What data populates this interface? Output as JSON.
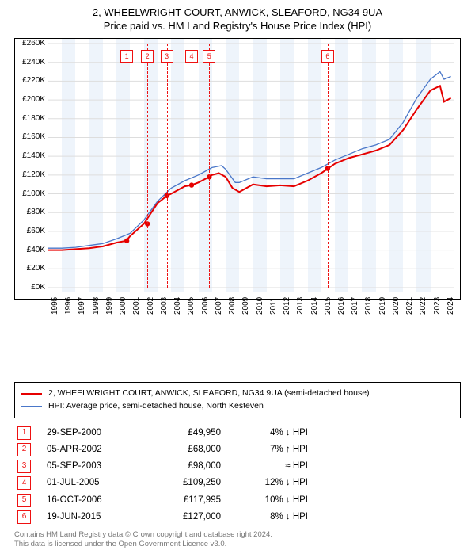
{
  "title_line1": "2, WHEELWRIGHT COURT, ANWICK, SLEAFORD, NG34 9UA",
  "title_line2": "Price paid vs. HM Land Registry's House Price Index (HPI)",
  "chart": {
    "type": "line",
    "background_color": "#ffffff",
    "grid_color": "#dddddd",
    "line_colors": {
      "price_paid": "#e60000",
      "hpi": "#4a77c9"
    },
    "line_widths": {
      "price_paid": 2,
      "hpi": 1.3
    },
    "x_min": 1995,
    "x_max": 2024.7,
    "y_min": 0,
    "y_max": 260000,
    "y_tick_step": 20000,
    "y_tick_prefix": "£",
    "y_tick_suffix": "K",
    "x_ticks": [
      1995,
      1996,
      1997,
      1998,
      1999,
      2000,
      2001,
      2002,
      2003,
      2004,
      2005,
      2006,
      2007,
      2008,
      2009,
      2010,
      2011,
      2012,
      2013,
      2014,
      2015,
      2016,
      2017,
      2018,
      2019,
      2020,
      2021,
      2022,
      2023,
      2024
    ],
    "alt_band_color": "#eef4fb",
    "series": {
      "price_paid": [
        [
          1995,
          40000
        ],
        [
          1996,
          40000
        ],
        [
          1997,
          41000
        ],
        [
          1998,
          42000
        ],
        [
          1999,
          44000
        ],
        [
          2000,
          48000
        ],
        [
          2000.7,
          49950
        ],
        [
          2001,
          55000
        ],
        [
          2002,
          68000
        ],
        [
          2003,
          90000
        ],
        [
          2003.7,
          98000
        ],
        [
          2004,
          100000
        ],
        [
          2005,
          108000
        ],
        [
          2005.5,
          109250
        ],
        [
          2006,
          112000
        ],
        [
          2006.8,
          117995
        ],
        [
          2007,
          120000
        ],
        [
          2007.5,
          122000
        ],
        [
          2008,
          118000
        ],
        [
          2008.5,
          106000
        ],
        [
          2009,
          102000
        ],
        [
          2010,
          110000
        ],
        [
          2011,
          108000
        ],
        [
          2012,
          109000
        ],
        [
          2013,
          108000
        ],
        [
          2014,
          114000
        ],
        [
          2015,
          122000
        ],
        [
          2015.5,
          127000
        ],
        [
          2016,
          132000
        ],
        [
          2017,
          138000
        ],
        [
          2018,
          142000
        ],
        [
          2019,
          146000
        ],
        [
          2020,
          152000
        ],
        [
          2021,
          168000
        ],
        [
          2022,
          190000
        ],
        [
          2023,
          210000
        ],
        [
          2023.7,
          215000
        ],
        [
          2024,
          198000
        ],
        [
          2024.5,
          202000
        ]
      ],
      "hpi": [
        [
          1995,
          42000
        ],
        [
          1996,
          42000
        ],
        [
          1997,
          43000
        ],
        [
          1998,
          45000
        ],
        [
          1999,
          47000
        ],
        [
          2000,
          52000
        ],
        [
          2001,
          58000
        ],
        [
          2002,
          72000
        ],
        [
          2003,
          92000
        ],
        [
          2004,
          106000
        ],
        [
          2005,
          114000
        ],
        [
          2006,
          120000
        ],
        [
          2007,
          128000
        ],
        [
          2007.7,
          130000
        ],
        [
          2008,
          126000
        ],
        [
          2008.7,
          112000
        ],
        [
          2009,
          112000
        ],
        [
          2010,
          118000
        ],
        [
          2011,
          116000
        ],
        [
          2012,
          116000
        ],
        [
          2013,
          116000
        ],
        [
          2014,
          122000
        ],
        [
          2015,
          128000
        ],
        [
          2016,
          136000
        ],
        [
          2017,
          142000
        ],
        [
          2018,
          148000
        ],
        [
          2019,
          152000
        ],
        [
          2020,
          158000
        ],
        [
          2021,
          176000
        ],
        [
          2022,
          202000
        ],
        [
          2023,
          222000
        ],
        [
          2023.7,
          230000
        ],
        [
          2024,
          222000
        ],
        [
          2024.5,
          225000
        ]
      ]
    },
    "sale_markers": [
      {
        "n": "1",
        "x": 2000.75,
        "y": 49950
      },
      {
        "n": "2",
        "x": 2002.26,
        "y": 68000
      },
      {
        "n": "3",
        "x": 2003.68,
        "y": 98000
      },
      {
        "n": "4",
        "x": 2005.5,
        "y": 109250
      },
      {
        "n": "5",
        "x": 2006.79,
        "y": 117995
      },
      {
        "n": "6",
        "x": 2015.47,
        "y": 127000
      }
    ],
    "sale_dot_color": "#e60000"
  },
  "legend": {
    "items": [
      {
        "color": "#e60000",
        "label": "2, WHEELWRIGHT COURT, ANWICK, SLEAFORD, NG34 9UA (semi-detached house)"
      },
      {
        "color": "#4a77c9",
        "label": "HPI: Average price, semi-detached house, North Kesteven"
      }
    ]
  },
  "sales": [
    {
      "n": "1",
      "date": "29-SEP-2000",
      "price": "£49,950",
      "delta": "4% ↓ HPI"
    },
    {
      "n": "2",
      "date": "05-APR-2002",
      "price": "£68,000",
      "delta": "7% ↑ HPI"
    },
    {
      "n": "3",
      "date": "05-SEP-2003",
      "price": "£98,000",
      "delta": "≈ HPI"
    },
    {
      "n": "4",
      "date": "01-JUL-2005",
      "price": "£109,250",
      "delta": "12% ↓ HPI"
    },
    {
      "n": "5",
      "date": "16-OCT-2006",
      "price": "£117,995",
      "delta": "10% ↓ HPI"
    },
    {
      "n": "6",
      "date": "19-JUN-2015",
      "price": "£127,000",
      "delta": "8% ↓ HPI"
    }
  ],
  "footer_line1": "Contains HM Land Registry data © Crown copyright and database right 2024.",
  "footer_line2": "This data is licensed under the Open Government Licence v3.0."
}
